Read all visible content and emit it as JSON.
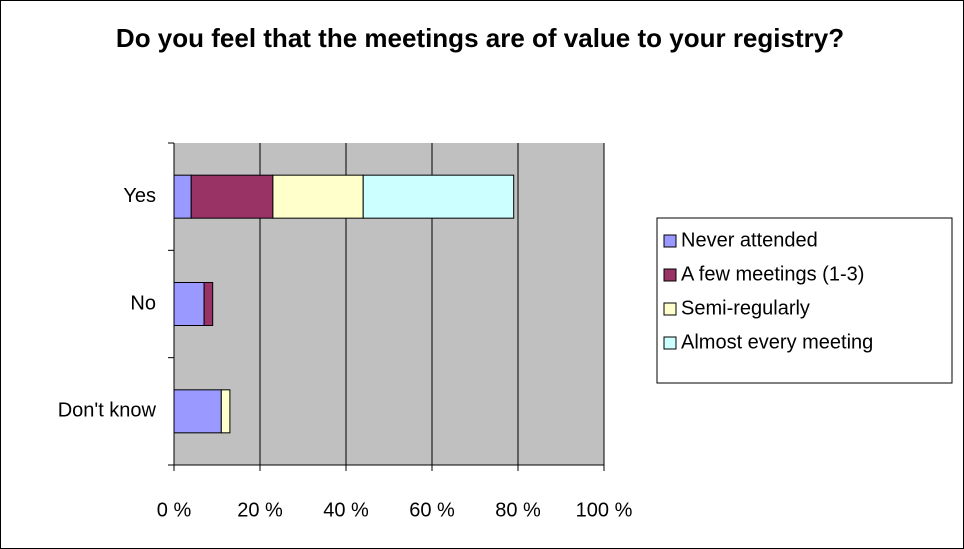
{
  "chart_data": {
    "type": "stacked_barh",
    "title": "Do you feel that the meetings are of value to your registry?",
    "categories": [
      "Yes",
      "No",
      "Don't know"
    ],
    "series": [
      {
        "name": "Never attended",
        "color": "#9999ff",
        "values": [
          4,
          7,
          11
        ]
      },
      {
        "name": "A few meetings (1-3)",
        "color": "#993366",
        "values": [
          19,
          2,
          0
        ]
      },
      {
        "name": "Semi-regularly",
        "color": "#ffffcc",
        "values": [
          21,
          0,
          2
        ]
      },
      {
        "name": "Almost every meeting",
        "color": "#ccffff",
        "values": [
          35,
          0,
          0
        ]
      }
    ],
    "xlim": [
      0,
      100
    ],
    "xticks": [
      {
        "value": 0,
        "label": "0 %"
      },
      {
        "value": 20,
        "label": "20 %"
      },
      {
        "value": 40,
        "label": "40 %"
      },
      {
        "value": 60,
        "label": "60 %"
      },
      {
        "value": 80,
        "label": "80 %"
      },
      {
        "value": 100,
        "label": "100 %"
      }
    ],
    "grid": true,
    "legend": "right"
  }
}
